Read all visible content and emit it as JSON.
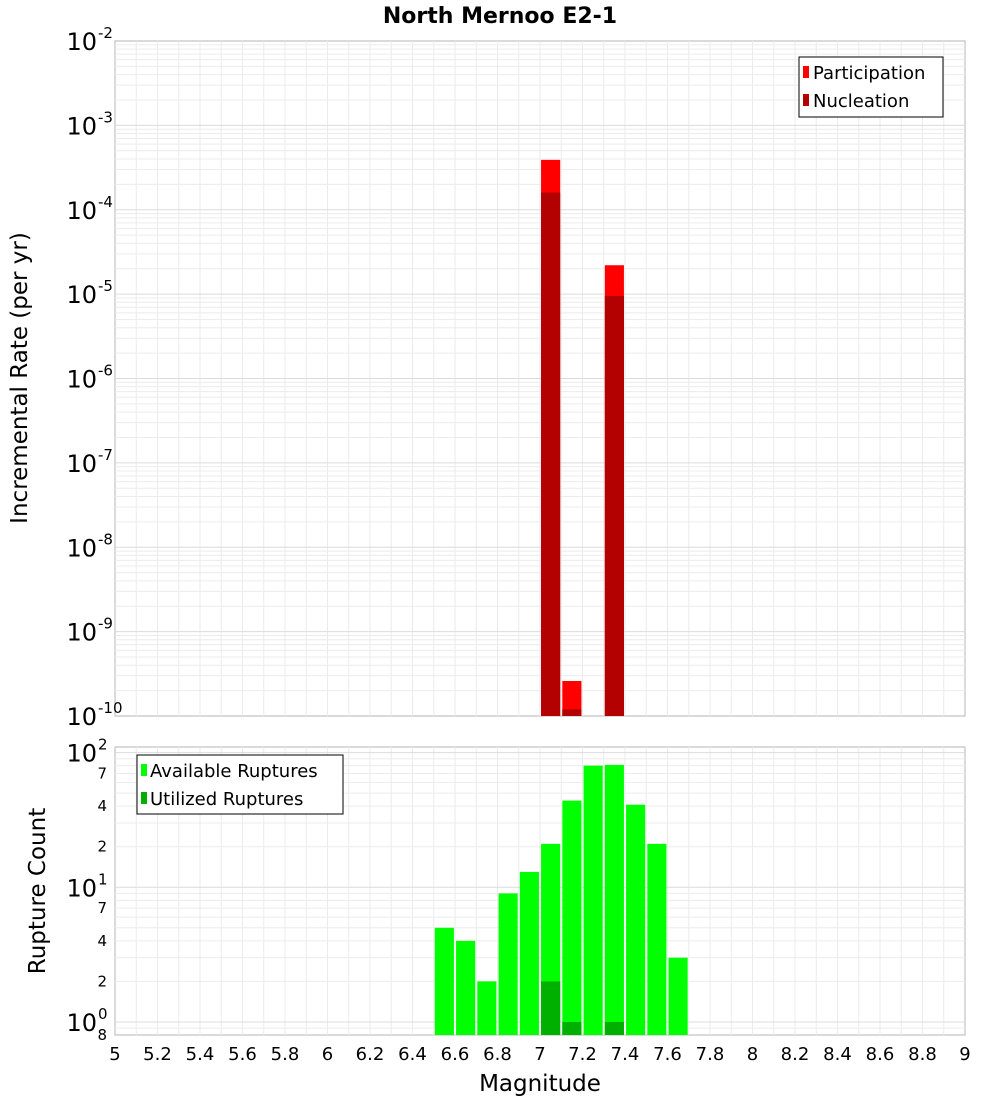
{
  "chart_data": [
    {
      "type": "bar",
      "title": "North Mernoo E2-1",
      "xlabel": "Magnitude",
      "ylabel": "Incremental Rate (per yr)",
      "yscale": "log",
      "ylim": [
        1e-10,
        0.01
      ],
      "xlim": [
        5,
        9
      ],
      "bar_width": 0.09,
      "grid": true,
      "legend_position": "top-right",
      "y_ticks": [
        {
          "base": "10",
          "exp": "-10",
          "value": 1e-10
        },
        {
          "base": "10",
          "exp": "-9",
          "value": 1e-09
        },
        {
          "base": "10",
          "exp": "-8",
          "value": 1e-08
        },
        {
          "base": "10",
          "exp": "-7",
          "value": 1e-07
        },
        {
          "base": "10",
          "exp": "-6",
          "value": 1e-06
        },
        {
          "base": "10",
          "exp": "-5",
          "value": 1e-05
        },
        {
          "base": "10",
          "exp": "-4",
          "value": 0.0001
        },
        {
          "base": "10",
          "exp": "-3",
          "value": 0.001
        },
        {
          "base": "10",
          "exp": "-2",
          "value": 0.01
        }
      ],
      "series": [
        {
          "name": "Participation",
          "color": "#ff0000",
          "points": [
            {
              "x": 7.05,
              "y": 0.00039
            },
            {
              "x": 7.15,
              "y": 2.6e-10
            },
            {
              "x": 7.35,
              "y": 2.2e-05
            }
          ]
        },
        {
          "name": "Nucleation",
          "color": "#b30000",
          "points": [
            {
              "x": 7.05,
              "y": 0.00016
            },
            {
              "x": 7.15,
              "y": 1.2e-10
            },
            {
              "x": 7.35,
              "y": 9.5e-06
            }
          ]
        }
      ]
    },
    {
      "type": "bar",
      "title": "",
      "xlabel": "Magnitude",
      "ylabel": "Rupture Count",
      "yscale": "log",
      "ylim": [
        0.8,
        110
      ],
      "xlim": [
        5,
        9
      ],
      "bar_width": 0.09,
      "grid": true,
      "legend_position": "top-left",
      "y_ticks": [
        {
          "base": "10",
          "exp": "0",
          "value": 1
        },
        {
          "base": "10",
          "exp": "1",
          "value": 10
        },
        {
          "base": "10",
          "exp": "2",
          "value": 100
        }
      ],
      "y_minor_ticks": [
        {
          "label": "8",
          "value": 0.8
        },
        {
          "label": "2",
          "value": 2
        },
        {
          "label": "4",
          "value": 4
        },
        {
          "label": "7",
          "value": 7
        },
        {
          "label": "2",
          "value": 20
        },
        {
          "label": "4",
          "value": 40
        },
        {
          "label": "7",
          "value": 70
        }
      ],
      "series": [
        {
          "name": "Available Ruptures",
          "color": "#00ff00",
          "points": [
            {
              "x": 6.55,
              "y": 5
            },
            {
              "x": 6.65,
              "y": 4
            },
            {
              "x": 6.75,
              "y": 2
            },
            {
              "x": 6.85,
              "y": 9
            },
            {
              "x": 6.95,
              "y": 13
            },
            {
              "x": 7.05,
              "y": 21
            },
            {
              "x": 7.15,
              "y": 44
            },
            {
              "x": 7.25,
              "y": 80
            },
            {
              "x": 7.35,
              "y": 81
            },
            {
              "x": 7.45,
              "y": 41
            },
            {
              "x": 7.55,
              "y": 21
            },
            {
              "x": 7.65,
              "y": 3
            }
          ]
        },
        {
          "name": "Utilized Ruptures",
          "color": "#00b000",
          "points": [
            {
              "x": 7.05,
              "y": 2
            },
            {
              "x": 7.15,
              "y": 1
            },
            {
              "x": 7.35,
              "y": 1
            }
          ]
        }
      ]
    }
  ],
  "x_ticks": [
    "5",
    "5.2",
    "5.4",
    "5.6",
    "5.8",
    "6",
    "6.2",
    "6.4",
    "6.6",
    "6.8",
    "7",
    "7.2",
    "7.4",
    "7.6",
    "7.8",
    "8",
    "8.2",
    "8.4",
    "8.6",
    "8.8",
    "9"
  ]
}
